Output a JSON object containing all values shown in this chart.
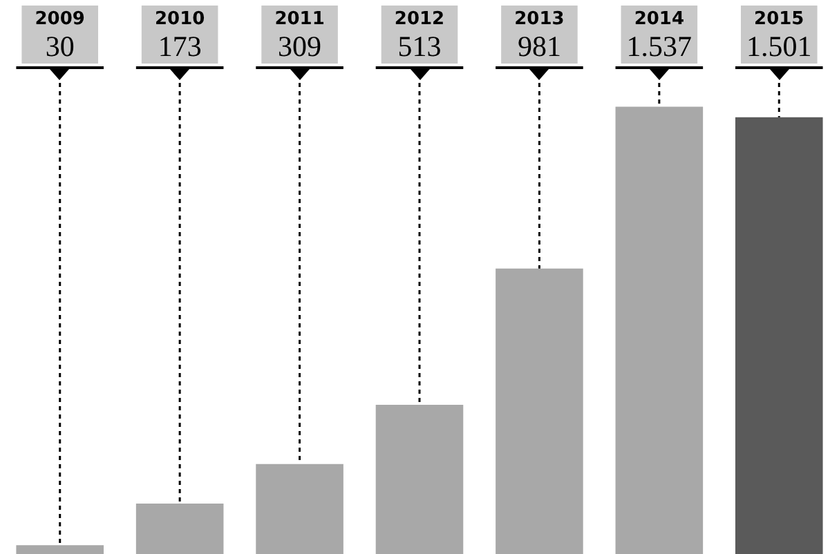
{
  "chart_data": {
    "type": "bar",
    "categories": [
      "2009",
      "2010",
      "2011",
      "2012",
      "2013",
      "2014",
      "2015"
    ],
    "values": [
      30,
      173,
      309,
      513,
      981,
      1537,
      1501
    ],
    "value_labels": [
      "30",
      "173",
      "309",
      "513",
      "981",
      "1.537",
      "1.501"
    ],
    "colors": [
      "#a8a8a8",
      "#a8a8a8",
      "#a8a8a8",
      "#a8a8a8",
      "#a8a8a8",
      "#a8a8a8",
      "#5a5a5a"
    ],
    "grid": "x",
    "legend": false
  }
}
